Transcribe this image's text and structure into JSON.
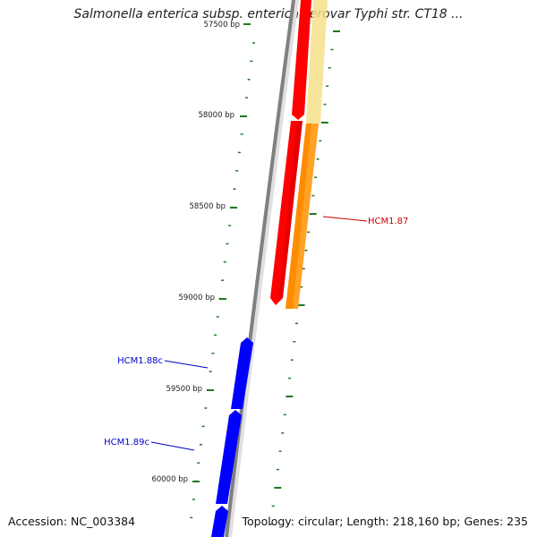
{
  "title": "Salmonella enterica subsp. enterica serovar Typhi str. CT18 ...",
  "footer": {
    "accession": "Accession: NC_003384",
    "summary": "Topology: circular; Length: 218,160 bp; Genes: 235"
  },
  "colors": {
    "backbone": "#808080",
    "tick": "#1f7a1f",
    "forward_gene": "#ff0000",
    "reverse_gene": "#0000ff",
    "orange_feature": "#ff8c00",
    "yellow_feature": "#f5e08a",
    "forward_label": "#cc0000",
    "reverse_label": "#0000cc"
  },
  "ticks": [
    {
      "label": "57500 bp"
    },
    {
      "label": "58000 bp"
    },
    {
      "label": "58500 bp"
    },
    {
      "label": "59000 bp"
    },
    {
      "label": "59500 bp"
    },
    {
      "label": "60000 bp"
    }
  ],
  "genes": [
    {
      "name": "HCM1.87",
      "strand": "forward"
    },
    {
      "name": "HCM1.88c",
      "strand": "reverse"
    },
    {
      "name": "HCM1.89c",
      "strand": "reverse"
    }
  ]
}
